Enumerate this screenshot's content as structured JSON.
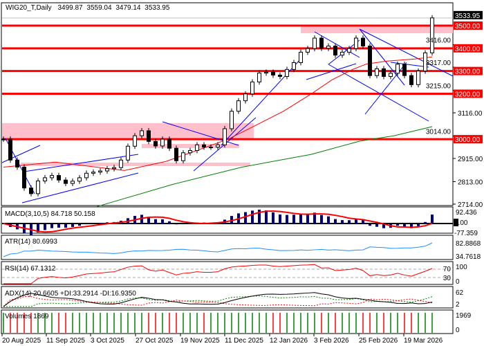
{
  "header": {
    "symbol": "WIG20_T,Daily",
    "open": "3499.87",
    "high": "3559.04",
    "low": "3479.14",
    "close": "3533.95"
  },
  "chart_data": {
    "type": "candlestick",
    "title": "WIG20_T,Daily",
    "close": [
      3000,
      2908,
      2877,
      2785,
      2760,
      2816,
      2830,
      2840,
      2820,
      2805,
      2815,
      2830,
      2850,
      2855,
      2860,
      2870,
      2875,
      2908,
      2969,
      3015,
      3037,
      2990,
      2970,
      3000,
      2960,
      2905,
      2940,
      2950,
      2975,
      2965,
      2965,
      2975,
      3046,
      3123,
      3169,
      3199,
      3252,
      3291,
      3295,
      3282,
      3276,
      3307,
      3337,
      3383,
      3399,
      3445,
      3400,
      3410,
      3370,
      3383,
      3399,
      3445,
      3410,
      3280,
      3310,
      3276,
      3290,
      3330,
      3280,
      3240,
      3300,
      3380,
      3534
    ],
    "ma_red": [
      [
        0,
        2877
      ],
      [
        7.5,
        2899
      ],
      [
        17.5,
        2862
      ],
      [
        23.5,
        2902
      ],
      [
        27.5,
        2945
      ],
      [
        32.5,
        3000
      ],
      [
        36.5,
        3061
      ],
      [
        40.5,
        3123
      ],
      [
        44.5,
        3199
      ],
      [
        47.5,
        3261
      ],
      [
        50.5,
        3307
      ],
      [
        52.5,
        3331
      ],
      [
        55.5,
        3344
      ],
      [
        59.5,
        3353
      ],
      [
        62,
        3362
      ]
    ],
    "ma_green": [
      [
        13.5,
        2703
      ],
      [
        24.5,
        2801
      ],
      [
        34.5,
        2877
      ],
      [
        44.5,
        2933
      ],
      [
        51.5,
        2991
      ],
      [
        56.5,
        3015
      ],
      [
        62,
        3055
      ]
    ],
    "levels": [
      {
        "value": 3500,
        "label": "3500.00"
      },
      {
        "value": 3400,
        "label": "3400.00"
      },
      {
        "value": 3300,
        "label": "3300.00"
      },
      {
        "value": 3200,
        "label": "3200.00"
      },
      {
        "value": 3000,
        "label": "3000.00"
      }
    ],
    "current_price": "3533.95",
    "y_ticks": [
      "3416.00",
      "3317.00",
      "3215.00",
      "3116.00",
      "3014.00",
      "2915.00",
      "2813.00",
      "2714.00"
    ],
    "y_tick_values": [
      3416,
      3317,
      3215,
      3116,
      3014,
      2915,
      2813,
      2714
    ],
    "ylim": [
      2714,
      3560
    ],
    "x_ticks": [
      "20 Aug 2025",
      "11 Sep 2025",
      "3 Oct 2025",
      "27 Oct 2025",
      "19 Nov 2025",
      "11 Dec 2025",
      "12 Jan 2026",
      "3 Feb 2026",
      "25 Feb 2026",
      "19 Mar 2026"
    ],
    "colors": {
      "level": "#ff0000",
      "zone": "#ffc0cb",
      "trendline": "#0000ff",
      "ma_fast": "#ff0000",
      "ma_slow": "#008000",
      "macd_hist": "#000080",
      "atr": "#1e90ff",
      "rsi": "#ff0000",
      "vol_up": "#008000",
      "vol_down": "#ff0000"
    }
  },
  "indicators": {
    "macd": {
      "label": "MACD(3,10,5) 84.718 50.158",
      "top": "92.436",
      "zero": "0.00",
      "bottom": "-77.359"
    },
    "atr": {
      "label": "ATR(14) 80.6993",
      "top": "82.8868",
      "bottom": "34.7618"
    },
    "rsi": {
      "label": "RSI(14) 67.1312",
      "t100": "100",
      "t70": "70",
      "t30": "30",
      "t0": "0"
    },
    "adx": {
      "label": "ADX(14) 20.6605 +DI:33.2914 -DI:16.9350",
      "top": "62",
      "bottom": "2"
    },
    "volume": {
      "label": "Volumes 1869",
      "top": "1969",
      "bottom": "0"
    }
  }
}
